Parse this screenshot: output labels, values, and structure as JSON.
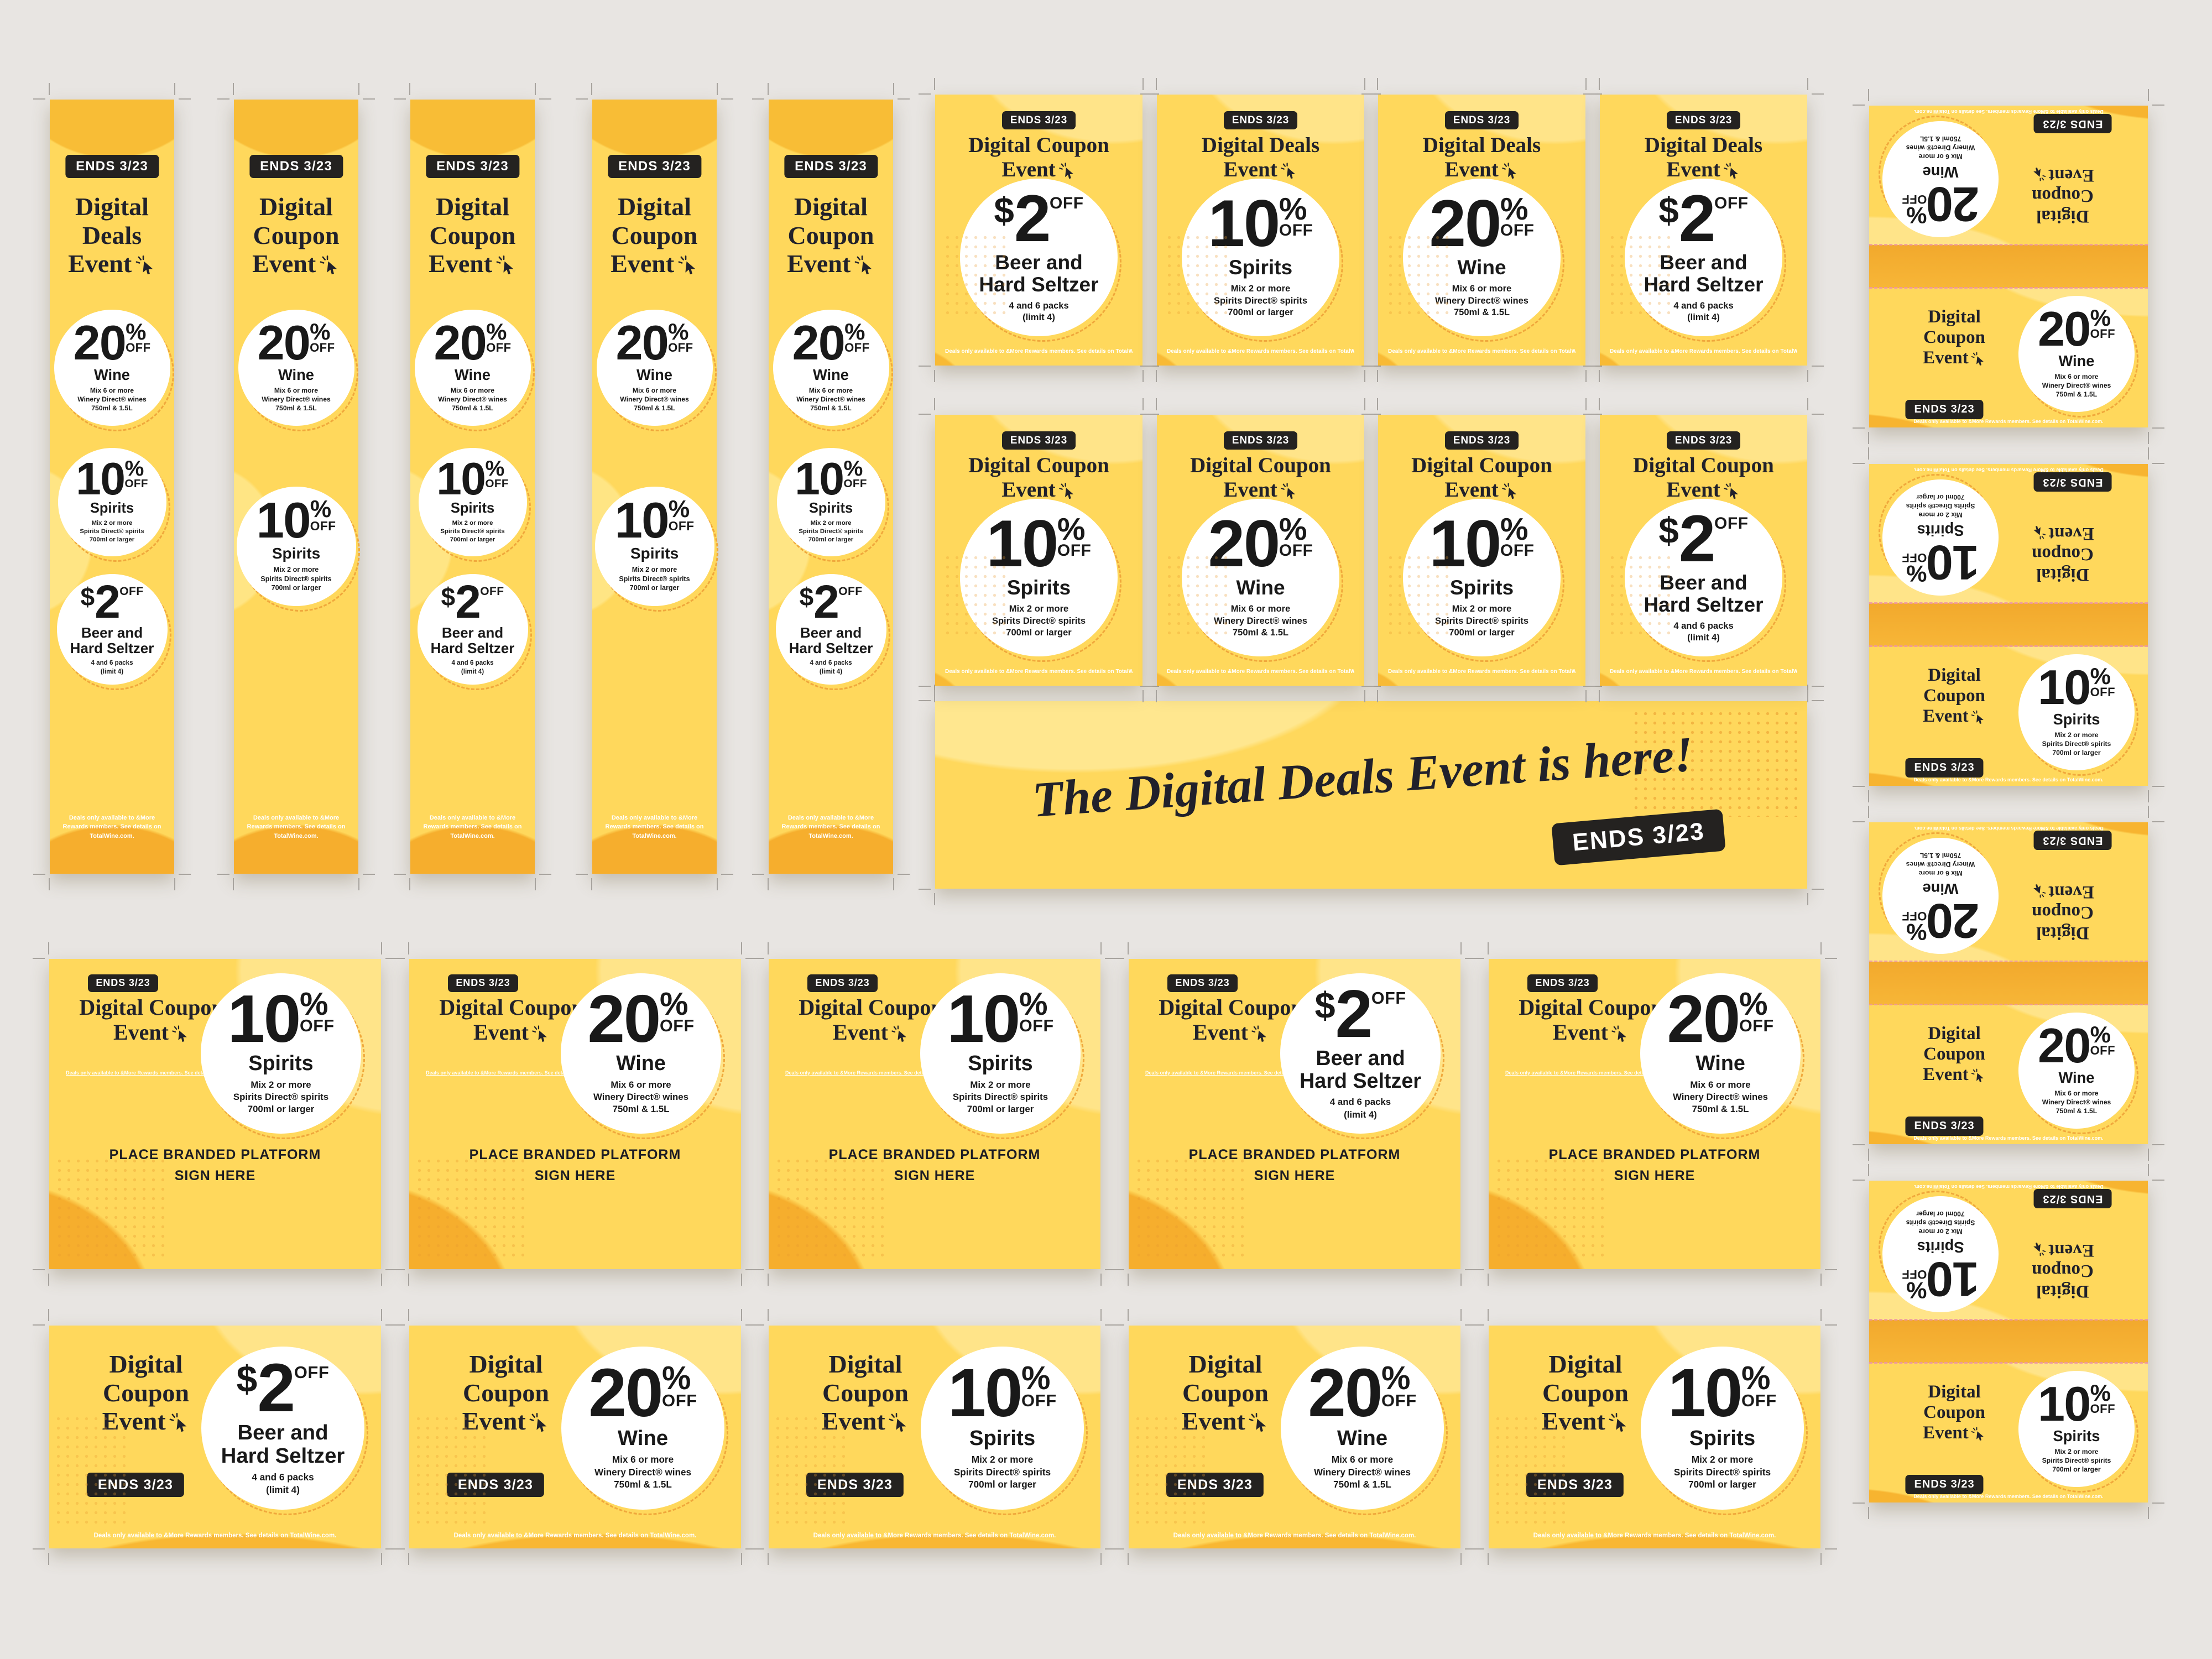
{
  "colors": {
    "background": "#e8e5e2",
    "card_yellow": "#ffd85c",
    "light_wave": "#ffe489",
    "orange_wave": "#f6ae2d",
    "badge_black": "#242220",
    "ink": "#21212b",
    "circle_white": "#ffffff"
  },
  "shared": {
    "ends_badge": "ENDS 3/23",
    "fine_print": "Deals only available to &More Rewards members. See details on TotalWine.com.",
    "place_sign_lines": [
      "PLACE BRANDED PLATFORM",
      "SIGN HERE"
    ]
  },
  "offers": {
    "wine20": {
      "amount": "20",
      "symbol": "%",
      "off": "OFF",
      "category": "Wine",
      "details": [
        "Mix 6 or more",
        "Winery Direct® wines",
        "750ml & 1.5L"
      ]
    },
    "spirits10": {
      "amount": "10",
      "symbol": "%",
      "off": "OFF",
      "category": "Spirits",
      "details": [
        "Mix 2 or more",
        "Spirits Direct® spirits",
        "700ml or larger"
      ]
    },
    "beer2": {
      "amount": "2",
      "symbol": "$",
      "off": "OFF",
      "category": "Beer and Hard Seltzer",
      "details": [
        "4 and 6 packs",
        "(limit 4)"
      ]
    }
  },
  "hero": {
    "headline": "The Digital Deals Event is here!",
    "badge": "ENDS 3/23"
  },
  "skyscraper_banners": [
    {
      "title_lines": [
        "Digital",
        "Deals",
        "Event"
      ],
      "offers": [
        "wine20",
        "spirits10",
        "beer2"
      ]
    },
    {
      "title_lines": [
        "Digital",
        "Coupon",
        "Event"
      ],
      "offers": [
        "wine20",
        "spirits10"
      ]
    },
    {
      "title_lines": [
        "Digital",
        "Coupon",
        "Event"
      ],
      "offers": [
        "wine20",
        "spirits10",
        "beer2"
      ]
    },
    {
      "title_lines": [
        "Digital",
        "Coupon",
        "Event"
      ],
      "offers": [
        "wine20",
        "spirits10"
      ]
    },
    {
      "title_lines": [
        "Digital",
        "Coupon",
        "Event"
      ],
      "offers": [
        "wine20",
        "spirits10",
        "beer2"
      ]
    }
  ],
  "portrait_row1": [
    {
      "title_lines": [
        "Digital Coupon",
        "Event"
      ],
      "offer": "beer2"
    },
    {
      "title_lines": [
        "Digital Deals",
        "Event"
      ],
      "offer": "spirits10"
    },
    {
      "title_lines": [
        "Digital Deals",
        "Event"
      ],
      "offer": "wine20"
    },
    {
      "title_lines": [
        "Digital Deals",
        "Event"
      ],
      "offer": "beer2"
    }
  ],
  "portrait_row2": [
    {
      "title_lines": [
        "Digital Coupon",
        "Event"
      ],
      "offer": "spirits10"
    },
    {
      "title_lines": [
        "Digital Coupon",
        "Event"
      ],
      "offer": "wine20"
    },
    {
      "title_lines": [
        "Digital Coupon",
        "Event"
      ],
      "offer": "spirits10"
    },
    {
      "title_lines": [
        "Digital Coupon",
        "Event"
      ],
      "offer": "beer2"
    }
  ],
  "table_tents": [
    {
      "title_lines": [
        "Digital",
        "Coupon",
        "Event"
      ],
      "offer": "wine20"
    },
    {
      "title_lines": [
        "Digital",
        "Coupon",
        "Event"
      ],
      "offer": "spirits10"
    },
    {
      "title_lines": [
        "Digital",
        "Coupon",
        "Event"
      ],
      "offer": "wine20"
    },
    {
      "title_lines": [
        "Digital",
        "Coupon",
        "Event"
      ],
      "offer": "spirits10"
    }
  ],
  "platform_cards": [
    {
      "title_lines": [
        "Digital Coupon",
        "Event"
      ],
      "offer": "spirits10"
    },
    {
      "title_lines": [
        "Digital Coupon",
        "Event"
      ],
      "offer": "wine20"
    },
    {
      "title_lines": [
        "Digital Coupon",
        "Event"
      ],
      "offer": "spirits10"
    },
    {
      "title_lines": [
        "Digital Coupon",
        "Event"
      ],
      "offer": "beer2"
    },
    {
      "title_lines": [
        "Digital Coupon",
        "Event"
      ],
      "offer": "wine20"
    }
  ],
  "landscape_cards": [
    {
      "title_lines": [
        "Digital",
        "Coupon",
        "Event"
      ],
      "offer": "beer2"
    },
    {
      "title_lines": [
        "Digital",
        "Coupon",
        "Event"
      ],
      "offer": "wine20"
    },
    {
      "title_lines": [
        "Digital",
        "Coupon",
        "Event"
      ],
      "offer": "spirits10"
    },
    {
      "title_lines": [
        "Digital",
        "Coupon",
        "Event"
      ],
      "offer": "wine20"
    },
    {
      "title_lines": [
        "Digital",
        "Coupon",
        "Event"
      ],
      "offer": "spirits10"
    }
  ]
}
